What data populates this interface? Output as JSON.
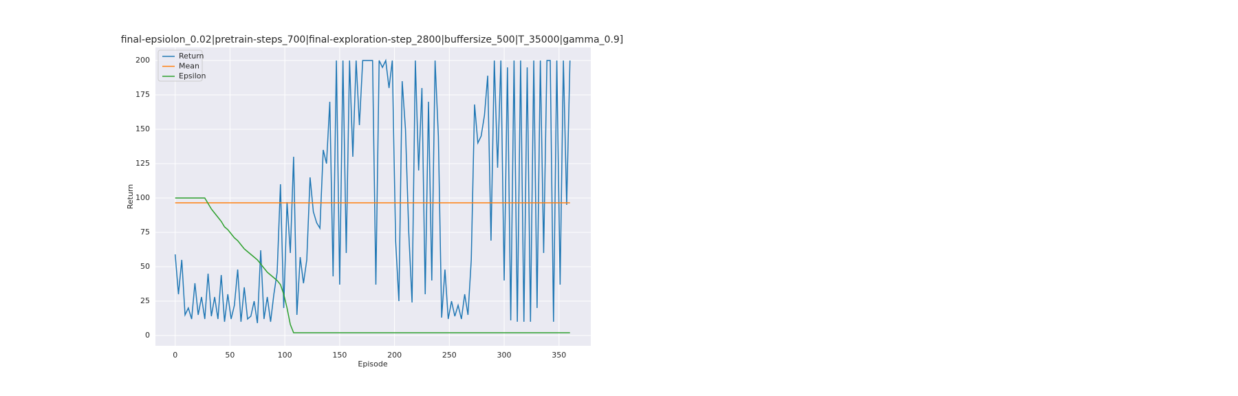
{
  "chart_data": {
    "type": "line",
    "title": "final-epsiolon_0.02|pretrain-steps_700|final-exploration-step_2800|buffersize_500|T_35000|gamma_0.9]",
    "x_label": "Episode",
    "y_label": "Return",
    "x": [
      0,
      3,
      6,
      9,
      12,
      15,
      18,
      21,
      24,
      27,
      30,
      33,
      36,
      39,
      42,
      45,
      48,
      51,
      54,
      57,
      60,
      63,
      66,
      69,
      72,
      75,
      78,
      81,
      84,
      87,
      90,
      93,
      96,
      99,
      102,
      105,
      108,
      111,
      114,
      117,
      120,
      123,
      126,
      129,
      132,
      135,
      138,
      141,
      144,
      147,
      150,
      153,
      156,
      159,
      162,
      165,
      168,
      171,
      174,
      177,
      180,
      183,
      186,
      189,
      192,
      195,
      198,
      201,
      204,
      207,
      210,
      213,
      216,
      219,
      222,
      225,
      228,
      231,
      234,
      237,
      240,
      243,
      246,
      249,
      252,
      255,
      258,
      261,
      264,
      267,
      270,
      273,
      276,
      279,
      282,
      285,
      288,
      291,
      294,
      297,
      300,
      303,
      306,
      309,
      312,
      315,
      318,
      321,
      324,
      327,
      330,
      333,
      336,
      339,
      342,
      345,
      348,
      351,
      354,
      357,
      360
    ],
    "series": [
      {
        "name": "Return",
        "color": "#1f77b4",
        "values": [
          59,
          30,
          55,
          15,
          20,
          12,
          38,
          15,
          28,
          12,
          45,
          14,
          28,
          12,
          44,
          10,
          30,
          12,
          22,
          48,
          10,
          35,
          12,
          14,
          25,
          9,
          62,
          12,
          28,
          10,
          30,
          46,
          110,
          20,
          97,
          60,
          130,
          15,
          57,
          38,
          55,
          115,
          90,
          82,
          78,
          135,
          125,
          170,
          43,
          200,
          37,
          200,
          60,
          200,
          130,
          200,
          153,
          200,
          200,
          200,
          200,
          37,
          200,
          195,
          200,
          180,
          200,
          69,
          25,
          185,
          150,
          75,
          24,
          200,
          120,
          180,
          30,
          170,
          40,
          200,
          145,
          13,
          48,
          12,
          25,
          14,
          22,
          12,
          30,
          15,
          55,
          168,
          140,
          145,
          160,
          189,
          69,
          200,
          122,
          200,
          40,
          195,
          11,
          200,
          10,
          200,
          10,
          195,
          10,
          200,
          20,
          200,
          60,
          200,
          200,
          10,
          200,
          37,
          200,
          95,
          200
        ]
      },
      {
        "name": "Mean",
        "color": "#ff7f0e",
        "values": [
          96.5,
          96.5,
          96.5,
          96.5,
          96.5,
          96.5,
          96.5,
          96.5,
          96.5,
          96.5,
          96.5,
          96.5,
          96.5,
          96.5,
          96.5,
          96.5,
          96.5,
          96.5,
          96.5,
          96.5,
          96.5,
          96.5,
          96.5,
          96.5,
          96.5,
          96.5,
          96.5,
          96.5,
          96.5,
          96.5,
          96.5,
          96.5,
          96.5,
          96.5,
          96.5,
          96.5,
          96.5,
          96.5,
          96.5,
          96.5,
          96.5,
          96.5,
          96.5,
          96.5,
          96.5,
          96.5,
          96.5,
          96.5,
          96.5,
          96.5,
          96.5,
          96.5,
          96.5,
          96.5,
          96.5,
          96.5,
          96.5,
          96.5,
          96.5,
          96.5,
          96.5,
          96.5,
          96.5,
          96.5,
          96.5,
          96.5,
          96.5,
          96.5,
          96.5,
          96.5,
          96.5,
          96.5,
          96.5,
          96.5,
          96.5,
          96.5,
          96.5,
          96.5,
          96.5,
          96.5,
          96.5,
          96.5,
          96.5,
          96.5,
          96.5,
          96.5,
          96.5,
          96.5,
          96.5,
          96.5,
          96.5,
          96.5,
          96.5,
          96.5,
          96.5,
          96.5,
          96.5,
          96.5,
          96.5,
          96.5,
          96.5,
          96.5,
          96.5,
          96.5,
          96.5,
          96.5,
          96.5,
          96.5,
          96.5,
          96.5,
          96.5,
          96.5,
          96.5,
          96.5,
          96.5,
          96.5,
          96.5,
          96.5,
          96.5,
          96.5,
          96.5
        ]
      },
      {
        "name": "Epsilon",
        "color": "#2ca02c",
        "values": [
          100,
          100,
          100,
          100,
          100,
          100,
          100,
          100,
          100,
          100,
          96,
          92,
          89,
          86,
          83,
          79,
          77,
          74,
          71,
          69,
          66,
          63,
          61,
          59,
          57,
          55,
          52,
          49,
          46,
          44,
          42,
          40,
          37,
          30,
          20,
          8,
          2,
          2,
          2,
          2,
          2,
          2,
          2,
          2,
          2,
          2,
          2,
          2,
          2,
          2,
          2,
          2,
          2,
          2,
          2,
          2,
          2,
          2,
          2,
          2,
          2,
          2,
          2,
          2,
          2,
          2,
          2,
          2,
          2,
          2,
          2,
          2,
          2,
          2,
          2,
          2,
          2,
          2,
          2,
          2,
          2,
          2,
          2,
          2,
          2,
          2,
          2,
          2,
          2,
          2,
          2,
          2,
          2,
          2,
          2,
          2,
          2,
          2,
          2,
          2,
          2,
          2,
          2,
          2,
          2,
          2,
          2,
          2,
          2,
          2,
          2,
          2,
          2,
          2,
          2,
          2,
          2,
          2,
          2,
          2,
          2
        ]
      }
    ],
    "xlim": [
      -18,
      379
    ],
    "ylim": [
      -7.5,
      209.5
    ],
    "xticks": [
      0,
      50,
      100,
      150,
      200,
      250,
      300,
      350
    ],
    "yticks": [
      0,
      25,
      50,
      75,
      100,
      125,
      150,
      175,
      200
    ],
    "grid": true,
    "legend": "upper left"
  }
}
